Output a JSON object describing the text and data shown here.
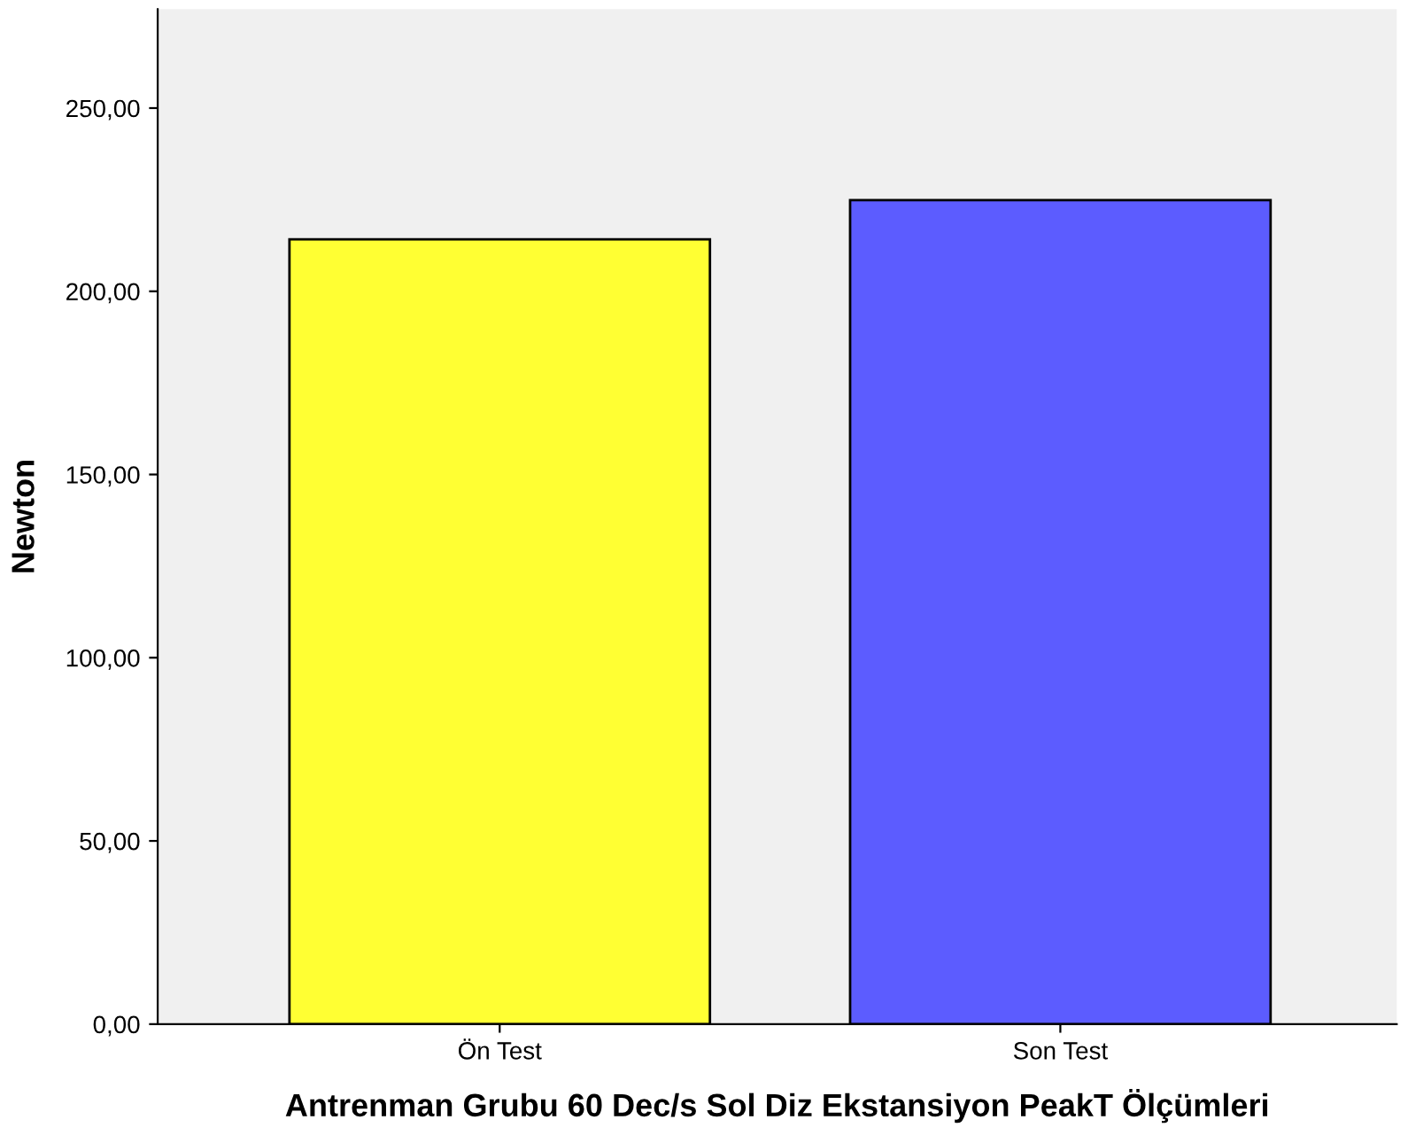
{
  "chart_data": {
    "type": "bar",
    "xlabel": "Antrenman Grubu 60 Dec/s Sol Diz Ekstansiyon PeakT Ölçümleri",
    "ylabel": "Newton",
    "categories": [
      "Ön Test",
      "Son Test"
    ],
    "values": [
      214.2,
      224.9
    ],
    "colors": [
      "#ffff33",
      "#5c5cff"
    ],
    "ylim": [
      0,
      277
    ],
    "yticks": [
      {
        "value": 0,
        "label": "0,00"
      },
      {
        "value": 50,
        "label": "50,00"
      },
      {
        "value": 100,
        "label": "100,00"
      },
      {
        "value": 150,
        "label": "150,00"
      },
      {
        "value": 200,
        "label": "200,00"
      },
      {
        "value": 250,
        "label": "250,00"
      }
    ],
    "grid": false,
    "legend": false
  }
}
